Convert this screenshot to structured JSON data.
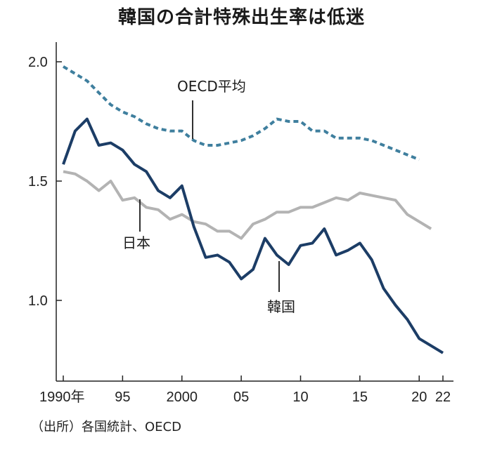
{
  "title": "韓国の合計特殊出生率は低迷",
  "source": "（出所）各国統計、OECD",
  "colors": {
    "korea": "#1c3d66",
    "oecd": "#3f7f9e",
    "japan": "#b3b3b3",
    "axis": "#222222"
  },
  "chart_data": {
    "type": "line",
    "title": "韓国の合計特殊出生率は低迷",
    "xlabel": "",
    "ylabel": "",
    "xlim": [
      1990,
      2022
    ],
    "ylim": [
      0.7,
      2.1
    ],
    "grid": false,
    "y_ticks": [
      {
        "value": 2.0,
        "label": "2.0"
      },
      {
        "value": 1.5,
        "label": "1.5"
      },
      {
        "value": 1.0,
        "label": "1.0"
      }
    ],
    "x_ticks": [
      {
        "value": 1990,
        "label": "1990年"
      },
      {
        "value": 1995,
        "label": "95"
      },
      {
        "value": 2000,
        "label": "2000"
      },
      {
        "value": 2005,
        "label": "05"
      },
      {
        "value": 2010,
        "label": "10"
      },
      {
        "value": 2015,
        "label": "15"
      },
      {
        "value": 2020,
        "label": "20"
      },
      {
        "value": 2022,
        "label": "22"
      }
    ],
    "series": [
      {
        "name": "OECD平均",
        "key": "oecd",
        "style": "dashed",
        "x": [
          1990,
          1991,
          1992,
          1993,
          1994,
          1995,
          1996,
          1997,
          1998,
          1999,
          2000,
          2001,
          2002,
          2003,
          2004,
          2005,
          2006,
          2007,
          2008,
          2009,
          2010,
          2011,
          2012,
          2013,
          2014,
          2015,
          2016,
          2017,
          2018,
          2019,
          2020
        ],
        "values": [
          1.98,
          1.95,
          1.92,
          1.87,
          1.82,
          1.79,
          1.77,
          1.74,
          1.72,
          1.71,
          1.71,
          1.67,
          1.65,
          1.65,
          1.66,
          1.67,
          1.69,
          1.72,
          1.76,
          1.75,
          1.75,
          1.71,
          1.71,
          1.68,
          1.68,
          1.68,
          1.67,
          1.65,
          1.63,
          1.61,
          1.59
        ]
      },
      {
        "name": "日本",
        "key": "japan",
        "style": "solid",
        "x": [
          1990,
          1991,
          1992,
          1993,
          1994,
          1995,
          1996,
          1997,
          1998,
          1999,
          2000,
          2001,
          2002,
          2003,
          2004,
          2005,
          2006,
          2007,
          2008,
          2009,
          2010,
          2011,
          2012,
          2013,
          2014,
          2015,
          2016,
          2017,
          2018,
          2019,
          2020,
          2021
        ],
        "values": [
          1.54,
          1.53,
          1.5,
          1.46,
          1.5,
          1.42,
          1.43,
          1.39,
          1.38,
          1.34,
          1.36,
          1.33,
          1.32,
          1.29,
          1.29,
          1.26,
          1.32,
          1.34,
          1.37,
          1.37,
          1.39,
          1.39,
          1.41,
          1.43,
          1.42,
          1.45,
          1.44,
          1.43,
          1.42,
          1.36,
          1.33,
          1.3
        ]
      },
      {
        "name": "韓国",
        "key": "korea",
        "style": "solid",
        "x": [
          1990,
          1991,
          1992,
          1993,
          1994,
          1995,
          1996,
          1997,
          1998,
          1999,
          2000,
          2001,
          2002,
          2003,
          2004,
          2005,
          2006,
          2007,
          2008,
          2009,
          2010,
          2011,
          2012,
          2013,
          2014,
          2015,
          2016,
          2017,
          2018,
          2019,
          2020,
          2021,
          2022
        ],
        "values": [
          1.57,
          1.71,
          1.76,
          1.65,
          1.66,
          1.63,
          1.57,
          1.54,
          1.46,
          1.43,
          1.48,
          1.31,
          1.18,
          1.19,
          1.16,
          1.09,
          1.13,
          1.26,
          1.19,
          1.15,
          1.23,
          1.24,
          1.3,
          1.19,
          1.21,
          1.24,
          1.17,
          1.05,
          0.98,
          0.92,
          0.84,
          0.81,
          0.78
        ]
      }
    ]
  }
}
